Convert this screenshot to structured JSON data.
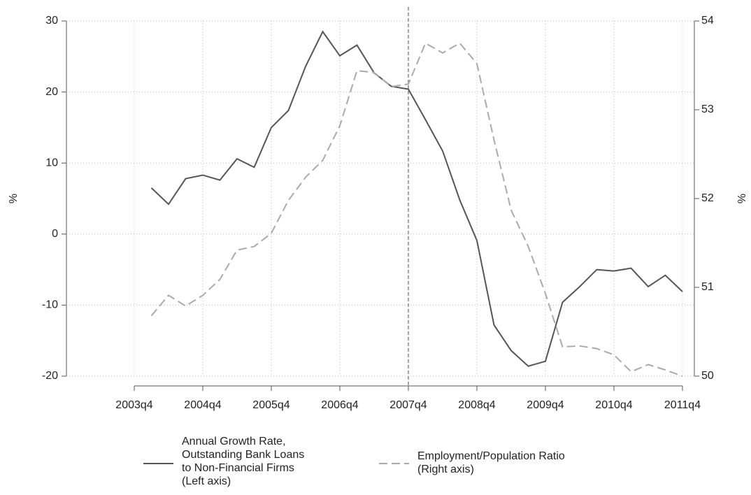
{
  "chart_data": {
    "type": "line",
    "categories": [
      "2003q4",
      null,
      null,
      null,
      "2004q4",
      null,
      null,
      null,
      "2005q4",
      null,
      null,
      null,
      "2006q4",
      null,
      null,
      null,
      "2007q4",
      null,
      null,
      null,
      "2008q4",
      null,
      null,
      null,
      "2009q4",
      null,
      null,
      null,
      "2010q4",
      null,
      null,
      null,
      "2011q4"
    ],
    "ylabel": "%",
    "y2label": "%",
    "ylim": [
      -20,
      30
    ],
    "yticks": [
      -20,
      -10,
      0,
      10,
      20,
      30
    ],
    "y2lim": [
      50,
      54
    ],
    "y2ticks": [
      50,
      51,
      52,
      53,
      54
    ],
    "grid": true,
    "vline": "2007q4",
    "legend": "bottom",
    "series": [
      {
        "name": "Annual Growth Rate,\nOutstanding Bank Loans\nto Non-Financial Firms\n(Left axis)",
        "color": "#555555",
        "dash": false,
        "axis": "y",
        "values": [
          null,
          6.5,
          4.2,
          7.8,
          8.3,
          7.6,
          10.6,
          9.4,
          15.0,
          17.4,
          23.6,
          28.5,
          25.1,
          26.6,
          22.7,
          20.8,
          20.4,
          16.1,
          11.7,
          4.8,
          -0.9,
          -12.8,
          -16.4,
          -18.6,
          -17.9,
          -9.6,
          -7.4,
          -5.0,
          -5.2,
          -4.8,
          -7.4,
          -5.8,
          -8.1
        ]
      },
      {
        "name": "Employment/Population Ratio\n(Right axis)",
        "color": "#aaaaaa",
        "dash": true,
        "axis": "y2",
        "values": [
          null,
          50.68,
          50.91,
          50.79,
          50.91,
          51.09,
          51.42,
          51.46,
          51.61,
          51.98,
          52.24,
          52.43,
          52.82,
          53.44,
          53.42,
          53.26,
          53.29,
          53.75,
          53.64,
          53.75,
          53.52,
          52.66,
          51.87,
          51.46,
          50.93,
          50.33,
          50.34,
          50.31,
          50.24,
          50.05,
          50.13,
          50.07,
          50.0
        ]
      }
    ]
  }
}
